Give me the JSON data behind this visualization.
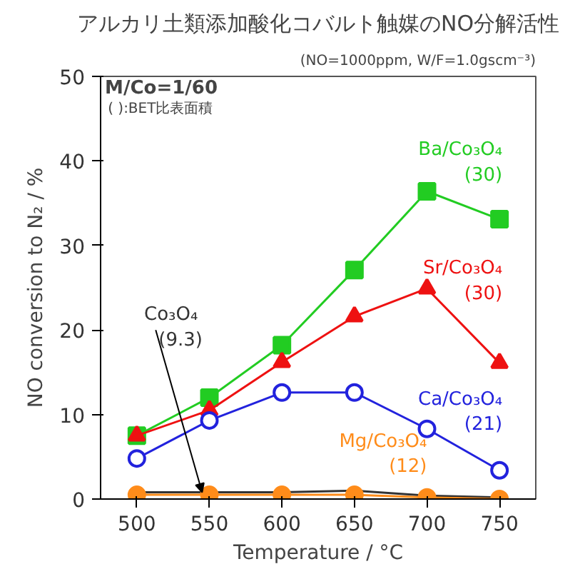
{
  "chart_data": {
    "type": "line",
    "title": "アルカリ土類添加酸化コバルト触媒のNO分解活性",
    "subtitle": "(NO=1000ppm, W/F=1.0gscm⁻³)",
    "xlabel": "Temperature / °C",
    "ylabel": "NO conversion to N₂ / %",
    "x": [
      500,
      550,
      600,
      650,
      700,
      750
    ],
    "xlim": [
      475,
      775
    ],
    "xticks": [
      500,
      550,
      600,
      650,
      700,
      750
    ],
    "ylim": [
      0,
      50
    ],
    "yticks": [
      0,
      10,
      20,
      30,
      40,
      50
    ],
    "series": [
      {
        "name": "Ba/Co₃O₄",
        "color": "#22cc22",
        "marker": "square",
        "values": [
          7.5,
          12.0,
          18.2,
          27.1,
          36.4,
          33.1
        ]
      },
      {
        "name": "Sr/Co₃O₄",
        "color": "#ee1111",
        "marker": "triangle",
        "values": [
          7.5,
          10.5,
          16.2,
          21.6,
          24.9,
          16.1
        ]
      },
      {
        "name": "Ca/Co₃O₄",
        "color": "#2222dd",
        "marker": "circle",
        "values": [
          4.8,
          9.3,
          12.6,
          12.6,
          8.3,
          3.4
        ]
      },
      {
        "name": "Co₃O₄",
        "color": "#333333",
        "marker": "none",
        "values": [
          0.8,
          0.8,
          0.8,
          1.0,
          0.4,
          0.2
        ]
      },
      {
        "name": "Mg/Co₃O₄",
        "color": "#ff8c1a",
        "marker": "circle",
        "values": [
          0.5,
          0.5,
          0.5,
          0.5,
          0.2,
          0.0
        ]
      }
    ],
    "annotations": [
      "M/Co=1/60",
      "( ):BET比表面積",
      "(30)",
      "(30)",
      "(21)",
      {
        "text": "(9.3)",
        "x": 545,
        "y": 0.8
      },
      "(12)"
    ]
  }
}
